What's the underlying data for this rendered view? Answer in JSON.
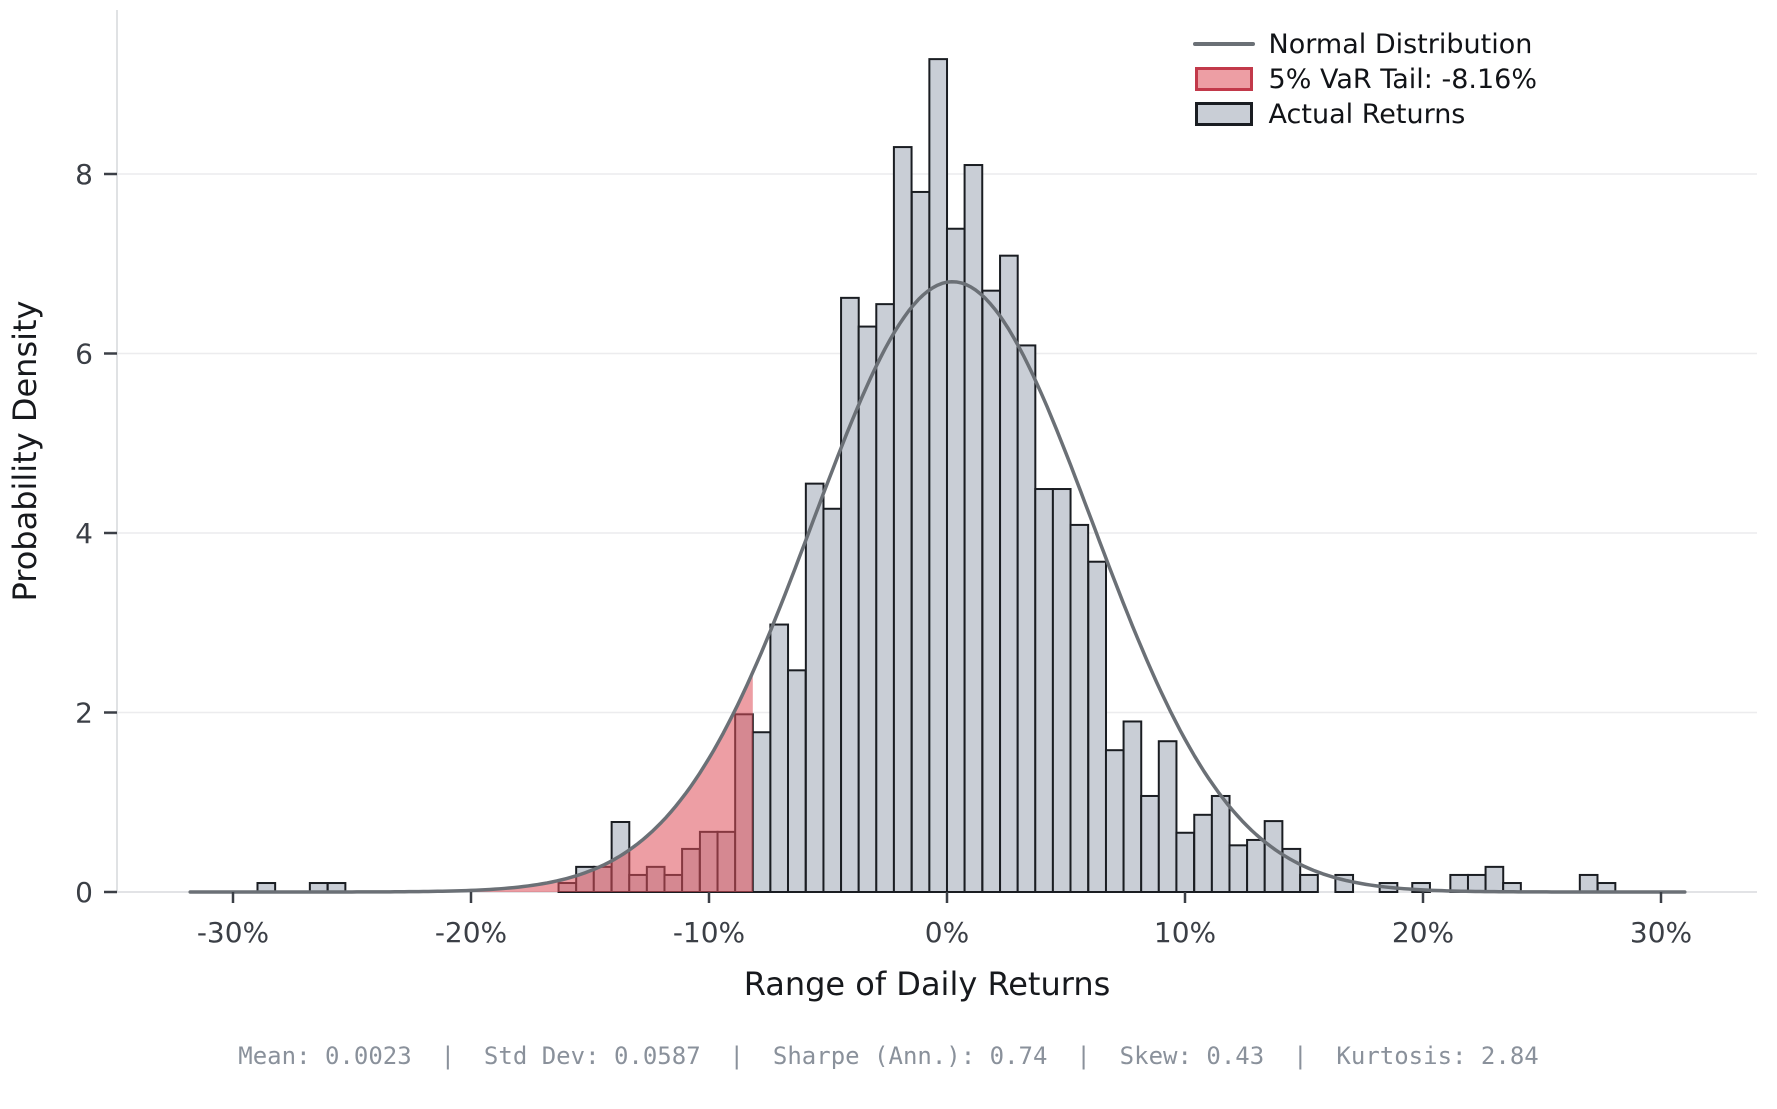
{
  "chart_data": {
    "type": "histogram",
    "xlabel": "Range of Daily Returns",
    "ylabel": "Probability Density",
    "x_ticks": [
      {
        "value": -30,
        "label": "-30%"
      },
      {
        "value": -20,
        "label": "-20%"
      },
      {
        "value": -10,
        "label": "-10%"
      },
      {
        "value": 0,
        "label": "0%"
      },
      {
        "value": 10,
        "label": "10%"
      },
      {
        "value": 20,
        "label": "20%"
      },
      {
        "value": 30,
        "label": "30%"
      }
    ],
    "y_ticks": [
      0,
      2,
      4,
      6,
      8
    ],
    "xlim_pct": [
      -35,
      34
    ],
    "ylim": [
      0,
      9.8
    ],
    "grid": "horizontal",
    "legend_position": "upper right",
    "bin_width_pct": 0.742,
    "bars_pct_density": [
      [
        -28.6,
        0.1
      ],
      [
        -26.4,
        0.1
      ],
      [
        -25.65,
        0.1
      ],
      [
        -15.95,
        0.1
      ],
      [
        -15.21,
        0.28
      ],
      [
        -14.47,
        0.28
      ],
      [
        -13.72,
        0.78
      ],
      [
        -12.98,
        0.19
      ],
      [
        -12.24,
        0.28
      ],
      [
        -11.5,
        0.19
      ],
      [
        -10.76,
        0.48
      ],
      [
        -10.01,
        0.67
      ],
      [
        -9.27,
        0.67
      ],
      [
        -8.53,
        1.98
      ],
      [
        -7.79,
        1.78
      ],
      [
        -7.05,
        2.98
      ],
      [
        -6.31,
        2.47
      ],
      [
        -5.56,
        4.55
      ],
      [
        -4.82,
        4.27
      ],
      [
        -4.08,
        6.62
      ],
      [
        -3.34,
        6.3
      ],
      [
        -2.6,
        6.55
      ],
      [
        -1.86,
        8.3
      ],
      [
        -1.11,
        7.8
      ],
      [
        -0.37,
        9.28
      ],
      [
        0.37,
        7.39
      ],
      [
        1.11,
        8.1
      ],
      [
        1.86,
        6.7
      ],
      [
        2.6,
        7.09
      ],
      [
        3.34,
        6.09
      ],
      [
        4.08,
        4.49
      ],
      [
        4.82,
        4.49
      ],
      [
        5.56,
        4.09
      ],
      [
        6.31,
        3.68
      ],
      [
        7.05,
        1.58
      ],
      [
        7.79,
        1.9
      ],
      [
        8.53,
        1.07
      ],
      [
        9.27,
        1.68
      ],
      [
        10.01,
        0.66
      ],
      [
        10.76,
        0.86
      ],
      [
        11.5,
        1.07
      ],
      [
        12.24,
        0.52
      ],
      [
        12.98,
        0.58
      ],
      [
        13.72,
        0.79
      ],
      [
        14.47,
        0.48
      ],
      [
        15.21,
        0.19
      ],
      [
        16.69,
        0.19
      ],
      [
        18.55,
        0.1
      ],
      [
        19.92,
        0.1
      ],
      [
        21.52,
        0.19
      ],
      [
        22.26,
        0.19
      ],
      [
        23.0,
        0.28
      ],
      [
        23.74,
        0.1
      ],
      [
        26.96,
        0.19
      ],
      [
        27.71,
        0.1
      ]
    ],
    "normal_curve": {
      "mean_pct": 0.23,
      "std_pct": 5.87,
      "peak_density": 6.8,
      "x_range_pct": [
        -31.8,
        31.0
      ]
    },
    "var_threshold_pct": -8.16,
    "legend": [
      {
        "label": "Normal Distribution",
        "type": "line"
      },
      {
        "label": "5% VaR Tail: -8.16%",
        "type": "patch-red"
      },
      {
        "label": "Actual Returns",
        "type": "patch-gray"
      }
    ],
    "footer_stats_text": "Mean: 0.0023  |  Std Dev: 0.0587  |  Sharpe (Ann.): 0.74  |  Skew: 0.43  |  Kurtosis: 2.84",
    "footer_stats": [
      {
        "label": "Mean",
        "value": "0.0023"
      },
      {
        "label": "Std Dev",
        "value": "0.0587"
      },
      {
        "label": "Sharpe (Ann.)",
        "value": "0.74"
      },
      {
        "label": "Skew",
        "value": "0.43"
      },
      {
        "label": "Kurtosis",
        "value": "2.84"
      }
    ],
    "colors": {
      "bar_fill": "#c9ced6",
      "bar_edge": "#1a1d22",
      "curve": "#6b7076",
      "var_fill": "rgba(222,78,90,0.55)",
      "var_edge": "#c2394a",
      "gridline": "#ececee",
      "spine": "#d8dadd",
      "tick": "#3b3f46",
      "tick_label": "#3b3f46",
      "axis_label": "#17191d",
      "footer_text": "#8a919b",
      "background": "#ffffff"
    }
  }
}
